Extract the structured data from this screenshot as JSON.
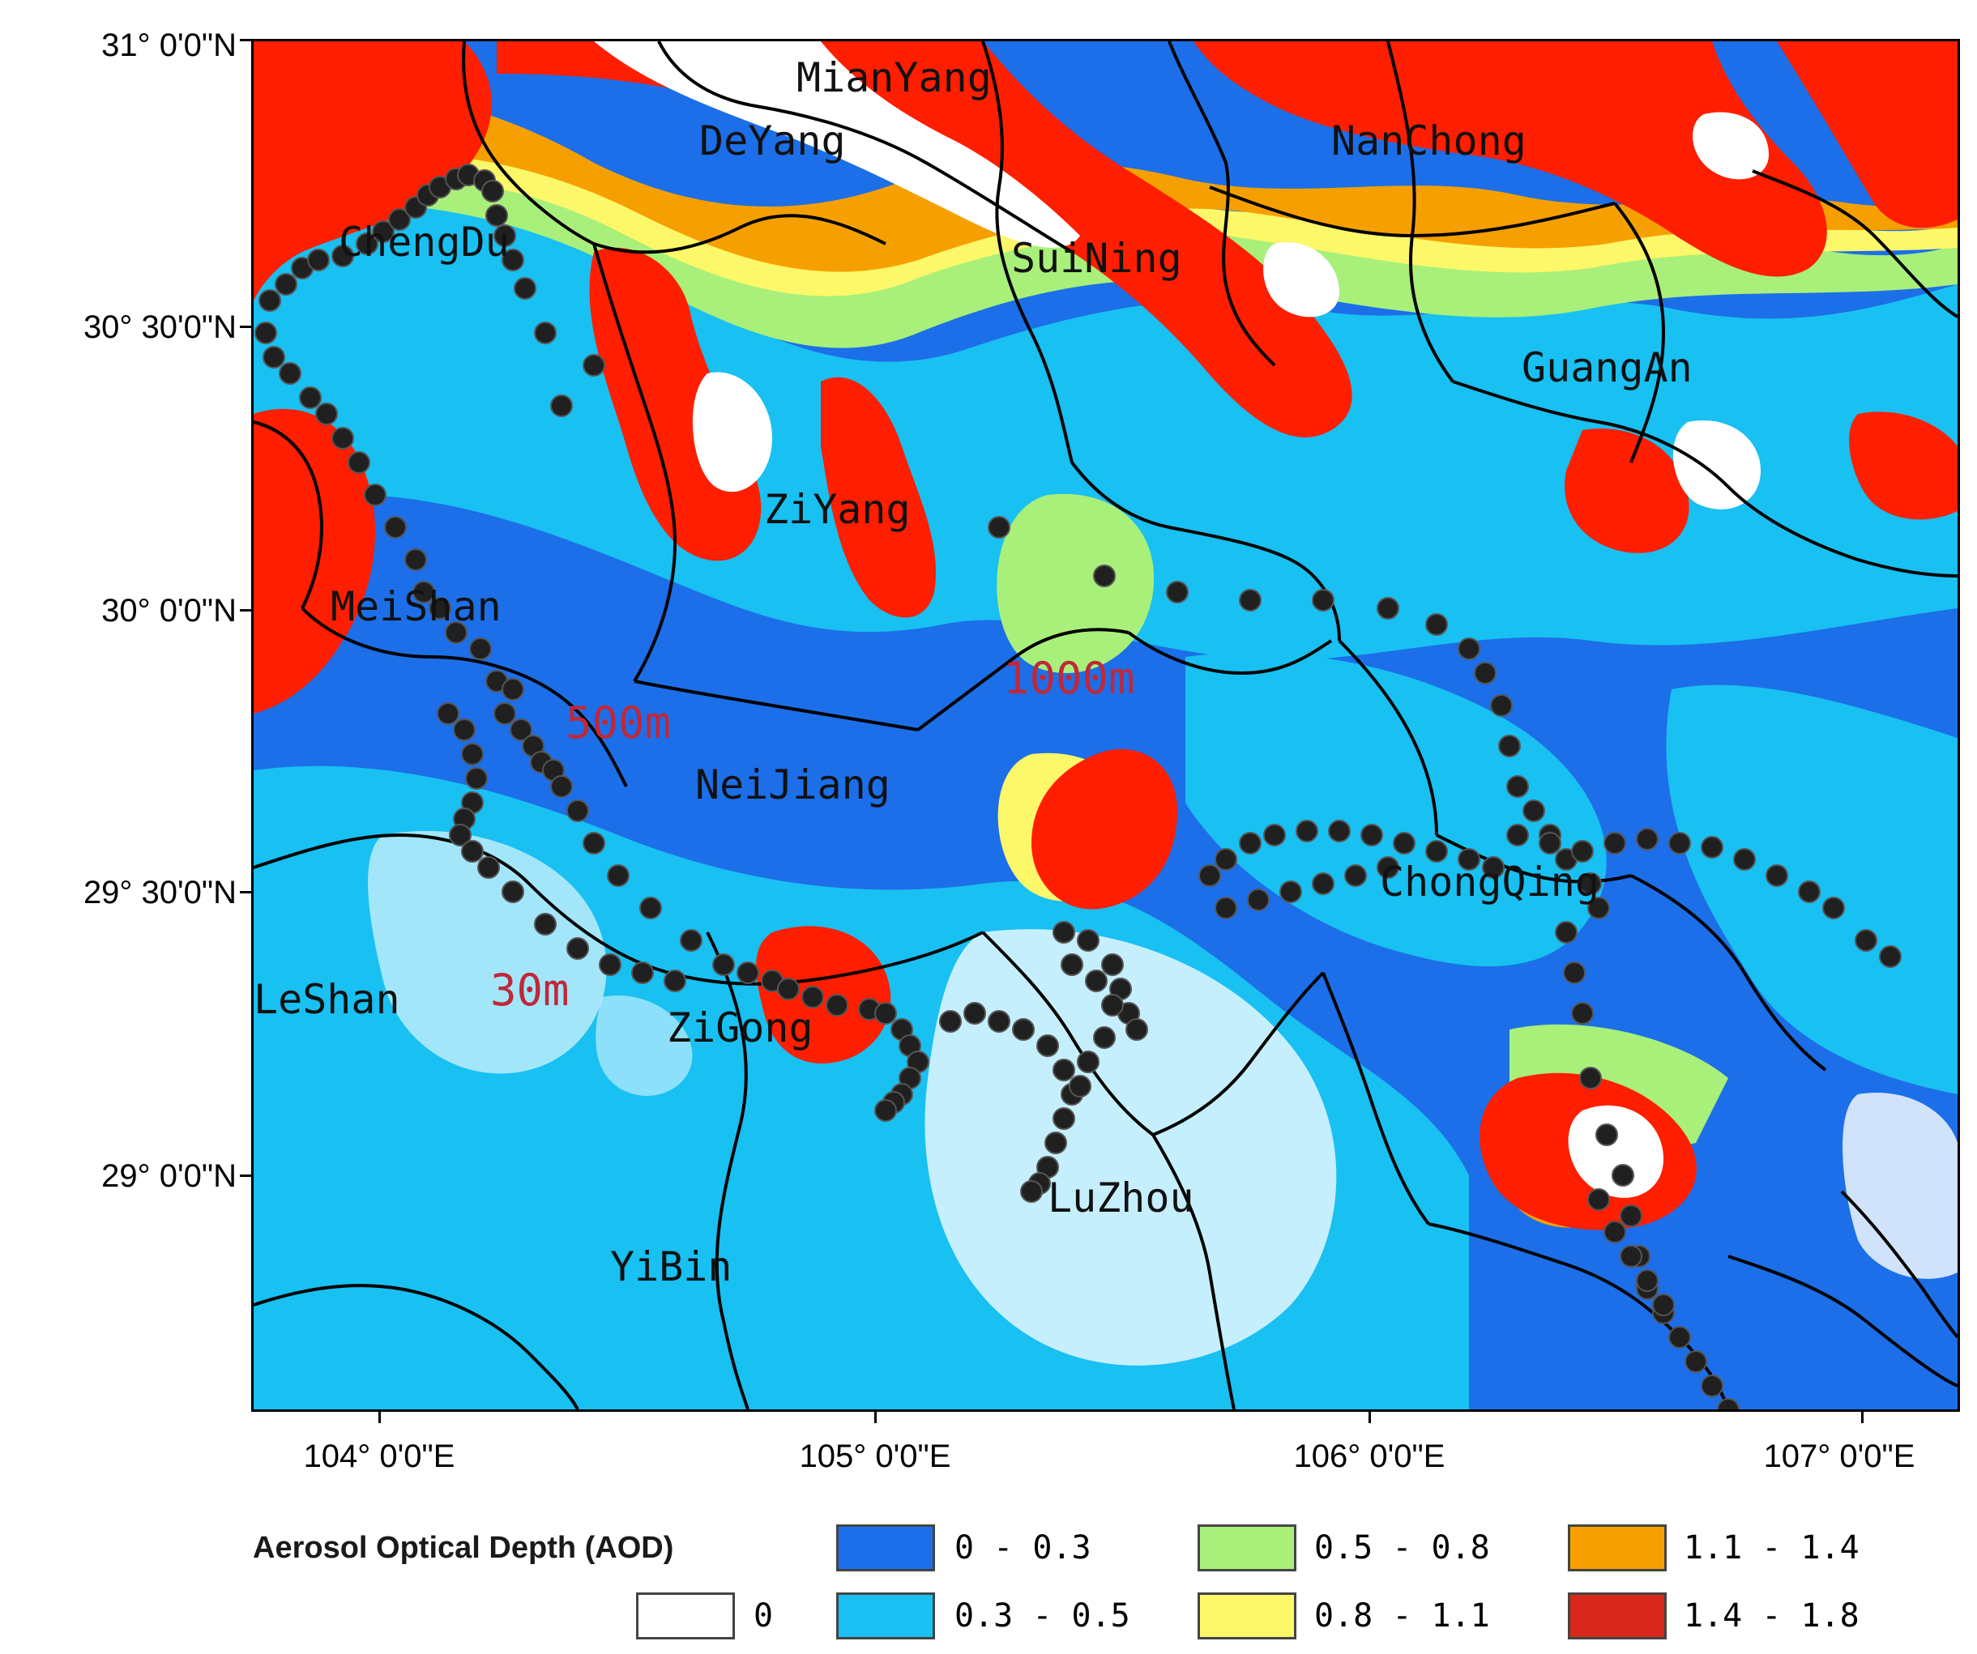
{
  "map": {
    "lat_ticks": [
      "31° 0'0\"N",
      "30° 30'0\"N",
      "30° 0'0\"N",
      "29° 30'0\"N",
      "29° 0'0\"N"
    ],
    "lon_ticks": [
      "104° 0'0\"E",
      "105° 0'0\"E",
      "106° 0'0\"E",
      "107° 0'0\"E"
    ],
    "cities": [
      "MianYang",
      "DeYang",
      "NanChong",
      "ChengDu",
      "SuiNing",
      "GuangAn",
      "ZiYang",
      "MeiShan",
      "NeiJiang",
      "ChongQing",
      "LeShan",
      "ZiGong",
      "LuZhou",
      "YiBin"
    ],
    "elevation_labels": [
      "1000m",
      "500m",
      "30m"
    ],
    "elevation_label_color": "#c0283a",
    "site_marker_color": "#202020"
  },
  "legend": {
    "title": "Aerosol Optical Depth (AOD)",
    "classes": [
      {
        "label": "0",
        "color": "#ffffff"
      },
      {
        "label": "0 - 0.3",
        "color": "#1c6fe8"
      },
      {
        "label": "0.3 - 0.5",
        "color": "#19c0f2"
      },
      {
        "label": "0.5 - 0.8",
        "color": "#a8f07a"
      },
      {
        "label": "0.8 - 1.1",
        "color": "#fdf76a"
      },
      {
        "label": "1.1 - 1.4",
        "color": "#f5a000"
      },
      {
        "label": "1.4 - 1.8",
        "color": "#d8281c"
      }
    ]
  }
}
